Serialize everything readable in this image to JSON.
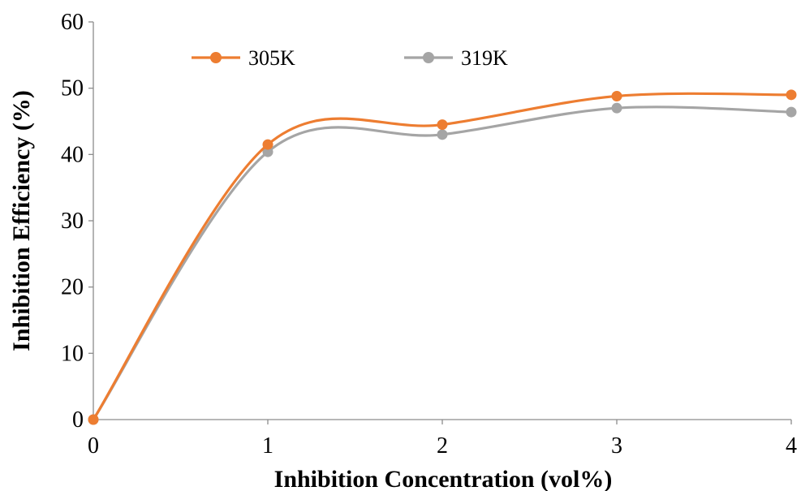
{
  "chart_data": {
    "type": "line",
    "smooth": true,
    "xlabel": "Inhibition Concentration (vol%)",
    "ylabel": "Inhibition Efficiency (%)",
    "xlim": [
      0,
      4
    ],
    "ylim": [
      0,
      60
    ],
    "xticks": [
      0,
      1,
      2,
      3,
      4
    ],
    "yticks": [
      0,
      10,
      20,
      30,
      40,
      50,
      60
    ],
    "grid": false,
    "legend_position": "top",
    "x": [
      0,
      1,
      2,
      3,
      4
    ],
    "series": [
      {
        "name": "305K",
        "color": "#ed7d31",
        "values": [
          0,
          41.5,
          44.5,
          48.8,
          49.0
        ]
      },
      {
        "name": "319K",
        "color": "#a5a5a5",
        "values": [
          0,
          40.4,
          43.0,
          47.0,
          46.4
        ]
      }
    ]
  }
}
